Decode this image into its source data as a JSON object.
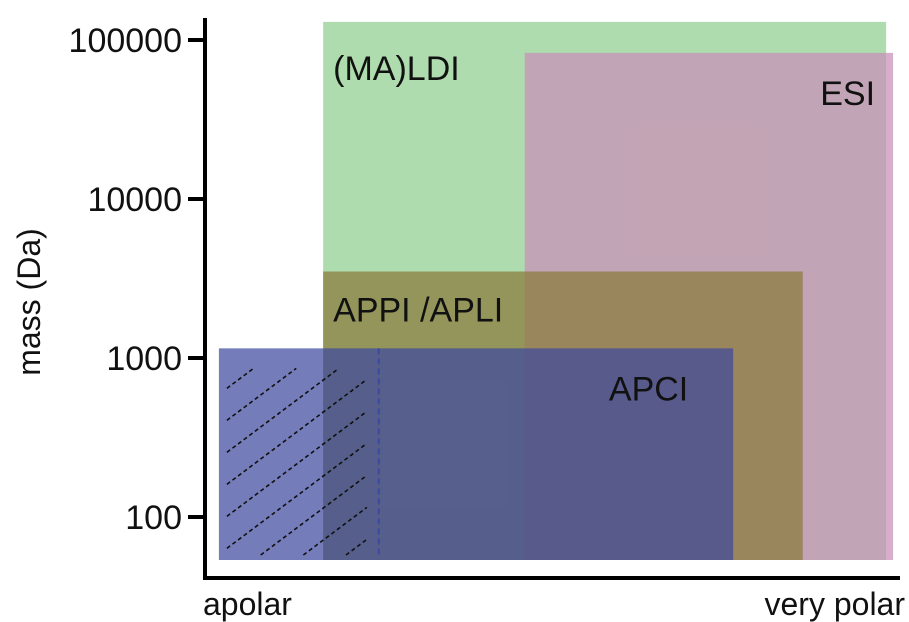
{
  "chart_data": {
    "type": "area",
    "title": "",
    "xlabel": "",
    "ylabel": "mass (Da)",
    "yscale": "log",
    "y_ticks": [
      {
        "value": 100,
        "label": "100"
      },
      {
        "value": 1000,
        "label": "1000"
      },
      {
        "value": 10000,
        "label": "10000"
      },
      {
        "value": 100000,
        "label": "100000"
      }
    ],
    "x_labels": {
      "left": "apolar",
      "right": "very polar"
    },
    "x_range": [
      0,
      1
    ],
    "y_range": [
      50,
      150000
    ],
    "grid": false,
    "regions": [
      {
        "name": "(MA)LDI",
        "x": [
          0.17,
          0.98
        ],
        "y": [
          50,
          130000
        ],
        "color": "#8fce8f"
      },
      {
        "name": "ESI",
        "x": [
          0.46,
          0.99
        ],
        "y": [
          50,
          83000
        ],
        "color": "#c98fb8"
      },
      {
        "name": "APPI /APLI",
        "x": [
          0.17,
          0.86
        ],
        "y": [
          50,
          3500
        ],
        "color": "#8a7a3a"
      },
      {
        "name": "APCI",
        "x": [
          0.02,
          0.76
        ],
        "y": [
          50,
          1150
        ],
        "color": "#3f4aa0"
      }
    ],
    "hatched_region": {
      "x": [
        0.02,
        0.25
      ],
      "y": [
        50,
        1150
      ]
    }
  }
}
